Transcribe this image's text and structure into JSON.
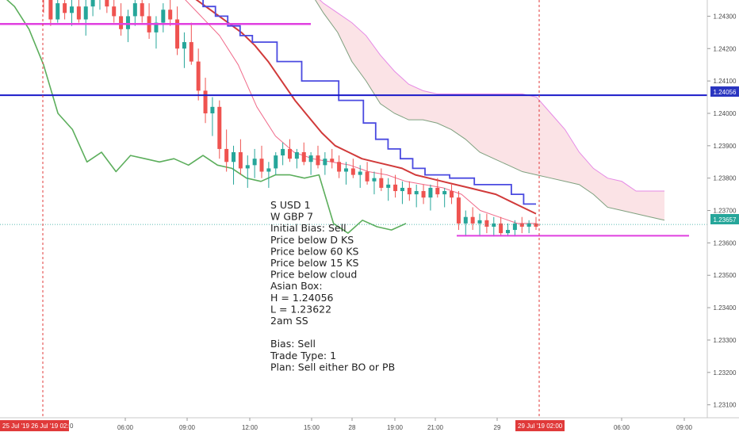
{
  "chart_data": {
    "type": "candlestick",
    "price_axis": {
      "ticks": [
        "1.24300",
        "1.24200",
        "1.24100",
        "1.24000",
        "1.23900",
        "1.23800",
        "1.23700",
        "1.23600",
        "1.23500",
        "1.23400",
        "1.23300",
        "1.23200",
        "1.23100"
      ],
      "range": [
        1.2306,
        1.2435
      ]
    },
    "time_axis": {
      "ticks": [
        "06:00",
        "09:00",
        "12:00",
        "15:00",
        "28",
        "19:00",
        "21:00",
        "29",
        "06:00",
        "09:00"
      ]
    },
    "price_labels": {
      "h_line": "1.24056",
      "current": "1.23657"
    },
    "time_flags": {
      "left": "25 Jul '19  26 Jul '19  02:00",
      "left_tail": "0",
      "right": "29 Jul '19  02:00"
    },
    "candles": [
      [
        1.2436,
        1.2439,
        1.2431,
        1.2435
      ],
      [
        1.2435,
        1.2438,
        1.2427,
        1.2429
      ],
      [
        1.2429,
        1.2437,
        1.2428,
        1.2434
      ],
      [
        1.2434,
        1.2438,
        1.2429,
        1.2431
      ],
      [
        1.2431,
        1.2436,
        1.2427,
        1.2433
      ],
      [
        1.2433,
        1.2437,
        1.2428,
        1.2429
      ],
      [
        1.2429,
        1.2435,
        1.2424,
        1.2433
      ],
      [
        1.2433,
        1.2438,
        1.243,
        1.2436
      ],
      [
        1.2436,
        1.244,
        1.2432,
        1.2438
      ],
      [
        1.2438,
        1.244,
        1.2431,
        1.2433
      ],
      [
        1.2433,
        1.2437,
        1.2428,
        1.243
      ],
      [
        1.243,
        1.2434,
        1.2424,
        1.2426
      ],
      [
        1.2426,
        1.2432,
        1.2422,
        1.243
      ],
      [
        1.243,
        1.2436,
        1.2427,
        1.2434
      ],
      [
        1.2434,
        1.2437,
        1.2428,
        1.243
      ],
      [
        1.243,
        1.2434,
        1.2423,
        1.2425
      ],
      [
        1.2425,
        1.243,
        1.242,
        1.2428
      ],
      [
        1.2428,
        1.2434,
        1.2425,
        1.2432
      ],
      [
        1.2432,
        1.2436,
        1.2427,
        1.2429
      ],
      [
        1.2429,
        1.2433,
        1.2418,
        1.242
      ],
      [
        1.242,
        1.2425,
        1.2414,
        1.2422
      ],
      [
        1.2422,
        1.2428,
        1.2415,
        1.2416
      ],
      [
        1.2416,
        1.242,
        1.2404,
        1.2407
      ],
      [
        1.2407,
        1.2411,
        1.2397,
        1.24
      ],
      [
        1.24,
        1.2405,
        1.2393,
        1.2402
      ],
      [
        1.2402,
        1.2404,
        1.2386,
        1.2389
      ],
      [
        1.2389,
        1.2395,
        1.2382,
        1.2385
      ],
      [
        1.2385,
        1.239,
        1.2378,
        1.2388
      ],
      [
        1.2388,
        1.2392,
        1.2381,
        1.2383
      ],
      [
        1.2383,
        1.2387,
        1.2377,
        1.2384
      ],
      [
        1.2384,
        1.2389,
        1.238,
        1.2386
      ],
      [
        1.2386,
        1.239,
        1.238,
        1.2382
      ],
      [
        1.2382,
        1.2385,
        1.2377,
        1.2383
      ],
      [
        1.2383,
        1.2388,
        1.2381,
        1.2387
      ],
      [
        1.2387,
        1.2391,
        1.2384,
        1.2389
      ],
      [
        1.2389,
        1.2392,
        1.2385,
        1.2386
      ],
      [
        1.2386,
        1.2389,
        1.2383,
        1.2388
      ],
      [
        1.2388,
        1.2391,
        1.2384,
        1.2385
      ],
      [
        1.2385,
        1.2388,
        1.2381,
        1.2387
      ],
      [
        1.2387,
        1.239,
        1.2383,
        1.2384
      ],
      [
        1.2384,
        1.2388,
        1.2381,
        1.2386
      ],
      [
        1.2386,
        1.2389,
        1.2383,
        1.2385
      ],
      [
        1.2385,
        1.2387,
        1.238,
        1.2382
      ],
      [
        1.2382,
        1.2385,
        1.2378,
        1.2383
      ],
      [
        1.2383,
        1.2386,
        1.238,
        1.2381
      ],
      [
        1.2381,
        1.2384,
        1.2377,
        1.2382
      ],
      [
        1.2382,
        1.2385,
        1.2378,
        1.2379
      ],
      [
        1.2379,
        1.2382,
        1.2375,
        1.238
      ],
      [
        1.238,
        1.2383,
        1.2376,
        1.2377
      ],
      [
        1.2377,
        1.238,
        1.2373,
        1.2378
      ],
      [
        1.2378,
        1.2381,
        1.2374,
        1.2376
      ],
      [
        1.2376,
        1.2379,
        1.2372,
        1.2377
      ],
      [
        1.2377,
        1.2379,
        1.2373,
        1.2375
      ],
      [
        1.2375,
        1.2378,
        1.2371,
        1.2376
      ],
      [
        1.2376,
        1.2378,
        1.2372,
        1.2374
      ],
      [
        1.2374,
        1.2378,
        1.237,
        1.2377
      ],
      [
        1.2377,
        1.238,
        1.2374,
        1.2375
      ],
      [
        1.2375,
        1.2377,
        1.2371,
        1.2376
      ],
      [
        1.2376,
        1.2378,
        1.2372,
        1.2374
      ],
      [
        1.2374,
        1.2376,
        1.2364,
        1.2366
      ],
      [
        1.2366,
        1.237,
        1.2362,
        1.2368
      ],
      [
        1.2368,
        1.2371,
        1.2364,
        1.2366
      ],
      [
        1.2366,
        1.2369,
        1.2362,
        1.2367
      ],
      [
        1.2367,
        1.2369,
        1.2363,
        1.2365
      ],
      [
        1.2365,
        1.2368,
        1.2362,
        1.2366
      ],
      [
        1.2366,
        1.2368,
        1.2362,
        1.2363
      ],
      [
        1.2363,
        1.2366,
        1.2362,
        1.2364
      ],
      [
        1.2364,
        1.2367,
        1.2362,
        1.2366
      ],
      [
        1.2366,
        1.2368,
        1.2363,
        1.2365
      ],
      [
        1.2365,
        1.2367,
        1.2363,
        1.2366
      ],
      [
        1.2366,
        1.2368,
        1.2364,
        1.2365
      ]
    ],
    "kijun_blue": [
      [
        1.244,
        1.2436,
        1.2433,
        1.243,
        1.2427,
        1.2424,
        1.2422,
        1.2422,
        1.2416,
        1.2416,
        1.241,
        1.241,
        1.241,
        1.2404,
        1.2404,
        1.2397,
        1.2392,
        1.2389,
        1.2386,
        1.2383,
        1.2381,
        1.2381,
        1.238,
        1.238,
        1.2378,
        1.2378,
        1.2378,
        1.2375,
        1.2372,
        1.2372
      ]
    ],
    "ema_red": [
      1.244,
      1.2437,
      1.2434,
      1.2431,
      1.2428,
      1.2425,
      1.2421,
      1.2416,
      1.241,
      1.2404,
      1.2399,
      1.2394,
      1.239,
      1.2388,
      1.2386,
      1.2385,
      1.2384,
      1.2383,
      1.2381,
      1.238,
      1.2379,
      1.2378,
      1.2377,
      1.2376,
      1.2375,
      1.2373,
      1.2371,
      1.2369
    ],
    "chikou_green": [
      1.2437,
      1.2433,
      1.2426,
      1.2415,
      1.24,
      1.2395,
      1.2385,
      1.2388,
      1.2382,
      1.2387,
      1.2386,
      1.2385,
      1.2386,
      1.2384,
      1.2387,
      1.2384,
      1.2383,
      1.238,
      1.2379,
      1.2381,
      1.2381,
      1.238,
      1.2381,
      1.2366,
      1.2363,
      1.2367,
      1.2365,
      1.2364,
      1.2366
    ],
    "levels": {
      "h_line": 1.24056,
      "l_line": 1.23622,
      "top_line": 1.24276,
      "current": 1.23657
    },
    "annotation": {
      "lines": [
        "S USD 1",
        "W GBP 7",
        "Initial Bias: Sell",
        "Price below D KS",
        "Price below 60 KS",
        "Price below 15 KS",
        "Price below cloud",
        "Asian Box:",
        "H = 1.24056",
        "L = 1.23622",
        "2am SS",
        "",
        "Bias: Sell",
        "Trade Type:  1",
        "Plan: Sell either BO or PB"
      ]
    },
    "colors": {
      "up": "#26a69a",
      "down": "#ef5350",
      "blue": "#1a1ac9",
      "blue_series": "#4a4ae0",
      "red_series": "#d13a3a",
      "green_series": "#5cae5c",
      "magenta": "#e040e0",
      "cloud_fill": "#f9d9de",
      "cloud_edge": "#e68ae6",
      "cloud_lower": "#7fa07f",
      "flag": "#e03a3a",
      "axis_label_bg": "#2a35c0",
      "current_bg": "#26a69a"
    }
  }
}
